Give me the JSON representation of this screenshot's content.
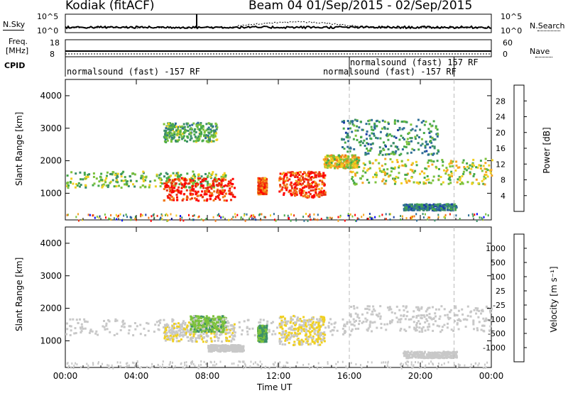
{
  "header": {
    "station": "Kodiak (fitACF)",
    "beam_range": "Beam 04  01/Sep/2015 - 02/Sep/2015"
  },
  "strips": {
    "nsky_label": "N.Sky",
    "nsky_top": "10^5",
    "nsky_bottom": "10^0",
    "nsky_right_top": "10^5",
    "nsky_right_bottom": "10^0",
    "nsearch_label": "N.Search",
    "freq_label_1": "Freq.",
    "freq_label_2": "[MHz]",
    "freq_top": "18",
    "freq_bottom": "8",
    "nave_label": "Nave",
    "nave_top": "60",
    "nave_bottom": "0",
    "cpid_label": "CPID",
    "cpid_entries": [
      "normalsound (fast) -157 RF",
      "normalsound (fast) 157 RF",
      "normalsound (fast) -157 RF"
    ]
  },
  "axes": {
    "xlabel": "Time UT",
    "ylabel": "Slant Range [km]",
    "xticks": [
      "00:00",
      "04:00",
      "08:00",
      "12:00",
      "16:00",
      "20:00",
      "00:00"
    ],
    "yticks": [
      "1000",
      "2000",
      "3000",
      "4000"
    ]
  },
  "colorbars": {
    "power_label": "Power [dB]",
    "power_ticks": [
      "28",
      "24",
      "20",
      "16",
      "12",
      "8",
      "4"
    ],
    "velocity_label": "Velocity [m s⁻¹]",
    "velocity_ticks": [
      "1000",
      "500",
      "100",
      "25",
      "-25",
      "-100",
      "-500",
      "-1000"
    ]
  },
  "chart_data": [
    {
      "type": "heatmap",
      "quantity": "Power [dB]",
      "xlabel": "Time UT",
      "ylabel": "Slant Range [km]",
      "xlim": [
        "00:00",
        "24:00"
      ],
      "ylim": [
        180,
        4500
      ],
      "clim": [
        0,
        30
      ],
      "colormap": [
        "#0000ff",
        "#1c3fa6",
        "#2e6e96",
        "#3c8f6a",
        "#46a84a",
        "#7cc23c",
        "#f0d020",
        "#f5a623",
        "#f07818",
        "#e83010",
        "#ff0000"
      ],
      "bands": [
        {
          "start_h": 0.0,
          "end_h": 9.0,
          "range_km": [
            1200,
            1700
          ],
          "power_db": 14
        },
        {
          "start_h": 5.5,
          "end_h": 9.5,
          "range_km": [
            800,
            1500
          ],
          "power_db": 27
        },
        {
          "start_h": 10.8,
          "end_h": 11.3,
          "range_km": [
            1000,
            1500
          ],
          "power_db": 24
        },
        {
          "start_h": 12.0,
          "end_h": 14.6,
          "range_km": [
            900,
            1700
          ],
          "power_db": 26
        },
        {
          "start_h": 14.5,
          "end_h": 16.5,
          "range_km": [
            1800,
            2200
          ],
          "power_db": 18
        },
        {
          "start_h": 16.0,
          "end_h": 24.0,
          "range_km": [
            1300,
            2100
          ],
          "power_db": 16
        },
        {
          "start_h": 5.5,
          "end_h": 8.5,
          "range_km": [
            2600,
            3200
          ],
          "power_db": 12
        },
        {
          "start_h": 15.5,
          "end_h": 21.0,
          "range_km": [
            2200,
            3300
          ],
          "power_db": 10
        },
        {
          "start_h": 19.0,
          "end_h": 22.0,
          "range_km": [
            500,
            700
          ],
          "power_db": 8
        }
      ],
      "vertical_markers_h": [
        16.0,
        21.9
      ]
    },
    {
      "type": "heatmap",
      "quantity": "Velocity [m s⁻¹]",
      "xlabel": "Time UT",
      "ylabel": "Slant Range [km]",
      "xlim": [
        "00:00",
        "24:00"
      ],
      "ylim": [
        180,
        4500
      ],
      "clim": [
        -1000,
        1000
      ],
      "colormap": [
        "#ff0000",
        "#f06010",
        "#f5a623",
        "#f0d020",
        "#c8c8c8",
        "#c8c8c8",
        "#7cc23c",
        "#3c8f6a",
        "#2e6e96",
        "#1c3fa6"
      ],
      "bands": [
        {
          "start_h": 0.0,
          "end_h": 16.0,
          "range_km": [
            1200,
            1700
          ],
          "velocity": 0
        },
        {
          "start_h": 5.5,
          "end_h": 9.5,
          "range_km": [
            1000,
            1600
          ],
          "velocity": -150
        },
        {
          "start_h": 7.0,
          "end_h": 9.0,
          "range_km": [
            1300,
            1800
          ],
          "velocity": 300
        },
        {
          "start_h": 10.8,
          "end_h": 11.3,
          "range_km": [
            1000,
            1500
          ],
          "velocity": 400
        },
        {
          "start_h": 12.0,
          "end_h": 14.6,
          "range_km": [
            900,
            1800
          ],
          "velocity": -200
        },
        {
          "start_h": 16.0,
          "end_h": 24.0,
          "range_km": [
            1300,
            2100
          ],
          "velocity": 0
        },
        {
          "start_h": 8.0,
          "end_h": 10.0,
          "range_km": [
            700,
            900
          ],
          "velocity": 0
        },
        {
          "start_h": 19.0,
          "end_h": 22.0,
          "range_km": [
            500,
            700
          ],
          "velocity": 0
        }
      ],
      "vertical_markers_h": [
        16.0,
        21.9
      ]
    }
  ]
}
